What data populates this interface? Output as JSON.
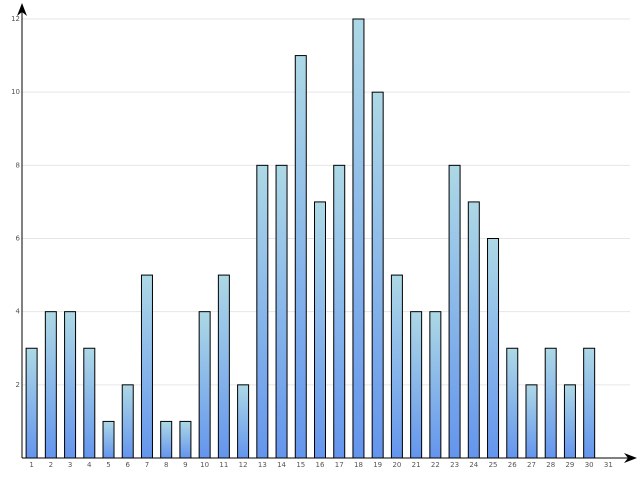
{
  "chart_data": {
    "type": "bar",
    "title": "",
    "xlabel": "",
    "ylabel": "",
    "categories": [
      "1",
      "2",
      "3",
      "4",
      "5",
      "6",
      "7",
      "8",
      "9",
      "10",
      "11",
      "12",
      "13",
      "14",
      "15",
      "16",
      "17",
      "18",
      "19",
      "20",
      "21",
      "22",
      "23",
      "24",
      "25",
      "26",
      "27",
      "28",
      "29",
      "30",
      "31"
    ],
    "values": [
      3,
      4,
      4,
      3,
      1,
      2,
      5,
      1,
      1,
      4,
      5,
      2,
      8,
      8,
      11,
      7,
      8,
      12,
      10,
      5,
      4,
      4,
      8,
      7,
      6,
      3,
      2,
      3,
      2,
      3,
      0
    ],
    "ylim": [
      0,
      12
    ],
    "yticks": [
      2,
      4,
      6,
      8,
      10,
      12
    ],
    "grid": true,
    "legend": "none",
    "colors": {
      "bar_top": "#add8e6",
      "bar_bottom": "#6495ed",
      "bar_outline": "#000000",
      "grid": "#e6e6e6",
      "axis": "#000000",
      "tick_text": "#555555"
    }
  }
}
